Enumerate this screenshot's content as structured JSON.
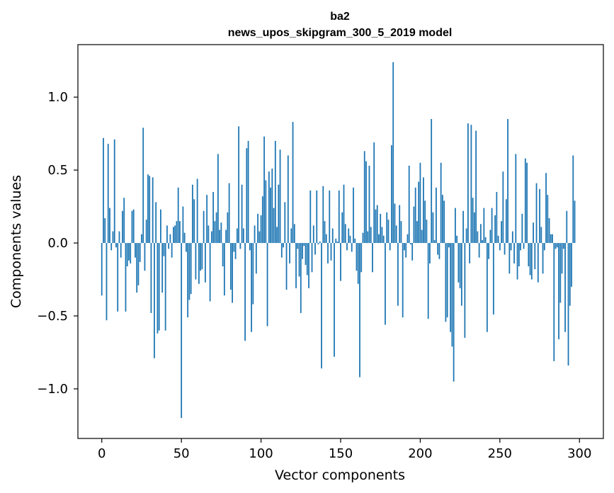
{
  "chart_data": {
    "type": "bar",
    "title_line1": "ba2",
    "title_line2": "news_upos_skipgram_300_5_2019 model",
    "xlabel": "Vector components",
    "ylabel": "Components values",
    "xlim": [
      -15,
      315
    ],
    "ylim": [
      -1.34,
      1.36
    ],
    "xticks": [
      0,
      50,
      100,
      150,
      200,
      250,
      300
    ],
    "xtick_labels": [
      "0",
      "50",
      "100",
      "150",
      "200",
      "250",
      "300"
    ],
    "yticks": [
      -1.0,
      -0.5,
      0.0,
      0.5,
      1.0
    ],
    "ytick_labels": [
      "−1.0",
      "−0.5",
      "0.0",
      "0.5",
      "1.0"
    ],
    "bar_color": "#1f77b4",
    "grid": false,
    "values": [
      -0.36,
      0.72,
      0.17,
      -0.53,
      0.68,
      0.24,
      -0.05,
      0.08,
      0.71,
      -0.03,
      -0.47,
      0.08,
      -0.1,
      0.22,
      0.31,
      -0.47,
      -0.16,
      -0.12,
      -0.14,
      0.22,
      0.23,
      -0.1,
      -0.34,
      -0.29,
      -0.13,
      0.06,
      0.79,
      -0.19,
      0.16,
      0.47,
      0.46,
      -0.48,
      0.45,
      -0.79,
      0.28,
      -0.62,
      -0.6,
      0.23,
      -0.34,
      -0.09,
      -0.6,
      0.12,
      -0.04,
      0.06,
      -0.1,
      0.11,
      0.12,
      0.15,
      0.38,
      0.15,
      -1.2,
      0.25,
      0.07,
      -0.06,
      -0.51,
      -0.39,
      -0.35,
      0.4,
      0.3,
      -0.25,
      0.44,
      -0.28,
      -0.19,
      -0.18,
      0.22,
      -0.27,
      0.33,
      0.12,
      -0.4,
      0.08,
      0.35,
      0.15,
      0.21,
      0.61,
      0.09,
      0.14,
      -0.16,
      -0.36,
      0.09,
      0.21,
      0.41,
      -0.32,
      -0.41,
      -0.06,
      -0.11,
      0.1,
      0.8,
      -0.04,
      0.4,
      0.1,
      -0.67,
      0.65,
      0.7,
      -0.05,
      -0.61,
      -0.42,
      0.12,
      -0.21,
      0.2,
      0.08,
      0.19,
      0.32,
      0.73,
      0.43,
      -0.57,
      0.49,
      0.38,
      0.51,
      0.24,
      0.7,
      0.11,
      0.4,
      0.64,
      -0.1,
      -0.03,
      0.28,
      -0.32,
      0.6,
      -0.14,
      0.1,
      0.83,
      0.13,
      -0.31,
      -0.04,
      -0.23,
      -0.48,
      -0.11,
      -0.02,
      -0.15,
      -0.22,
      -0.31,
      0.36,
      -0.2,
      0.12,
      -0.08,
      0.36,
      -0.01,
      0.01,
      -0.86,
      0.39,
      0.15,
      0.06,
      -0.14,
      0.36,
      -0.12,
      0.1,
      -0.78,
      0.03,
      0.01,
      0.36,
      -0.26,
      0.21,
      0.4,
      0.13,
      -0.05,
      0.1,
      0.05,
      -0.06,
      0.38,
      0.03,
      -0.19,
      -0.28,
      -0.92,
      -0.2,
      0.07,
      0.63,
      0.56,
      0.08,
      0.53,
      0.11,
      -0.2,
      0.69,
      0.23,
      0.26,
      0.06,
      0.2,
      0.11,
      0.05,
      -0.56,
      0.21,
      0.16,
      -0.05,
      0.67,
      1.24,
      0.27,
      0.12,
      -0.43,
      0.26,
      0.15,
      -0.51,
      -0.05,
      -0.1,
      0.06,
      0.53,
      -0.01,
      -0.12,
      0.25,
      0.38,
      0.15,
      0.42,
      0.55,
      0.09,
      0.45,
      0.29,
      0.16,
      -0.52,
      -0.14,
      0.85,
      0.21,
      0.02,
      0.38,
      -0.08,
      -0.11,
      0.55,
      0.33,
      0.29,
      -0.54,
      -0.51,
      -0.03,
      -0.61,
      -0.71,
      -0.95,
      0.24,
      0.05,
      -0.27,
      -0.31,
      -0.43,
      0.22,
      -0.65,
      0.1,
      0.82,
      -0.14,
      0.81,
      0.31,
      0.21,
      0.77,
      0.08,
      -0.1,
      0.13,
      0.02,
      0.24,
      0.04,
      -0.61,
      -0.11,
      0.09,
      0.24,
      -0.49,
      0.19,
      0.35,
      0.05,
      -0.05,
      0.15,
      0.49,
      -0.08,
      0.3,
      0.85,
      -0.21,
      -0.05,
      0.08,
      -0.14,
      0.61,
      -0.25,
      -0.16,
      -0.05,
      0.2,
      -0.04,
      0.58,
      0.55,
      -0.16,
      -0.22,
      -0.25,
      0.14,
      -0.18,
      0.41,
      -0.27,
      0.37,
      0.11,
      -0.21,
      -0.05,
      0.48,
      0.33,
      0.17,
      0.06,
      0.06,
      -0.81,
      -0.04,
      -0.03,
      -0.66,
      -0.41,
      -0.21,
      -0.04,
      -0.61,
      0.22,
      -0.84,
      -0.43,
      -0.3,
      0.6,
      0.29
    ]
  }
}
